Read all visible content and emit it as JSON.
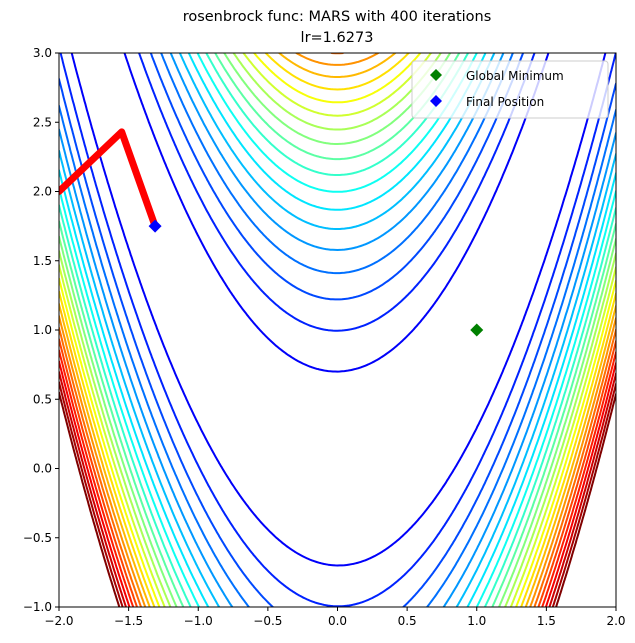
{
  "chart_data": {
    "type": "line",
    "title": "rosenbrock func: MARS with 400 iterations",
    "subtitle": "lr=1.6273",
    "xlabel": "",
    "ylabel": "",
    "xlim": [
      -2.0,
      2.0
    ],
    "ylim": [
      -1.0,
      3.0
    ],
    "x_ticks": [
      "−2.0",
      "−1.5",
      "−1.0",
      "−0.5",
      "0.0",
      "0.5",
      "1.0",
      "1.5",
      "2.0"
    ],
    "y_ticks": [
      "−1.0",
      "−0.5",
      "0.0",
      "0.5",
      "1.0",
      "1.5",
      "2.0",
      "2.5",
      "3.0"
    ],
    "grid": false,
    "legend_position": "top-right",
    "contours": {
      "function": "(1-x)^2 + 100*(y-x^2)^2",
      "levels": [
        50,
        100,
        150,
        200,
        250,
        300,
        350,
        400,
        450,
        500,
        550,
        600,
        650,
        700,
        750,
        800,
        850,
        900,
        950,
        1000,
        1050,
        1100,
        1150,
        1200
      ],
      "colormap": "jet"
    },
    "series": [
      {
        "name": "",
        "type": "path",
        "color": "#ff0000",
        "x": [
          -2.0,
          -1.55,
          -1.31
        ],
        "y": [
          2.0,
          2.43,
          1.75
        ]
      },
      {
        "name": "Global Minimum",
        "type": "marker",
        "marker": "diamond",
        "color": "#008000",
        "x": [
          1.0
        ],
        "y": [
          1.0
        ]
      },
      {
        "name": "Final Position",
        "type": "marker",
        "marker": "diamond",
        "color": "#0000ff",
        "x": [
          -1.31
        ],
        "y": [
          1.75
        ]
      }
    ]
  }
}
